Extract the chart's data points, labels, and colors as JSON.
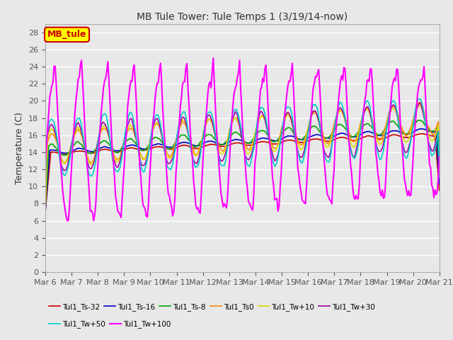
{
  "title": "MB Tule Tower: Tule Temps 1 (3/19/14-now)",
  "ylabel": "Temperature (C)",
  "ylim": [
    0,
    29
  ],
  "yticks": [
    0,
    2,
    4,
    6,
    8,
    10,
    12,
    14,
    16,
    18,
    20,
    22,
    24,
    26,
    28
  ],
  "x_labels": [
    "Mar 6",
    "Mar 7",
    "Mar 8",
    "Mar 9",
    "Mar 10",
    "Mar 11",
    "Mar 12",
    "Mar 13",
    "Mar 14",
    "Mar 15",
    "Mar 16",
    "Mar 17",
    "Mar 18",
    "Mar 19",
    "Mar 20",
    "Mar 21"
  ],
  "series": {
    "Tul1_Ts-32": {
      "color": "#cc0000",
      "lw": 1.2
    },
    "Tul1_Ts-16": {
      "color": "#0000cc",
      "lw": 1.2
    },
    "Tul1_Ts-8": {
      "color": "#00aa00",
      "lw": 1.2
    },
    "Tul1_Ts0": {
      "color": "#ff8800",
      "lw": 1.2
    },
    "Tul1_Tw+10": {
      "color": "#dddd00",
      "lw": 1.2
    },
    "Tul1_Tw+30": {
      "color": "#aa00aa",
      "lw": 1.2
    },
    "Tul1_Tw+50": {
      "color": "#00cccc",
      "lw": 1.2
    },
    "Tul1_Tw+100": {
      "color": "#ff00ff",
      "lw": 1.5
    }
  },
  "legend_box": {
    "label": "MB_tule",
    "facecolor": "#ffff00",
    "edgecolor": "#cc0000"
  },
  "fig_facecolor": "#e8e8e8",
  "ax_facecolor": "#e8e8e8",
  "grid_color": "#ffffff",
  "legend_ncol_row1": 6,
  "legend_ncol_row2": 2
}
